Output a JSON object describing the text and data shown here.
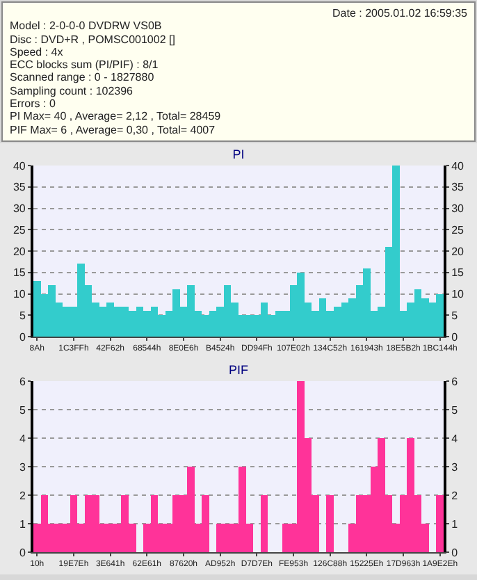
{
  "chart_data": [
    {
      "type": "other",
      "annotations": [
        "Date : 2005.01.02 16:59:35",
        "Model : 2-0-0-0 DVDRW VS0B",
        "Disc : DVD+R , POMSC001002 []",
        "Speed : 4x",
        "ECC blocks sum (PI/PIF) : 8/1",
        "Scanned range : 0 - 1827880",
        "Sampling count : 102396",
        "Errors : 0",
        "PI Max= 40 , Average= 2,12 , Total= 28459",
        "PIF Max= 6 , Average= 0,30 , Total= 4007"
      ]
    },
    {
      "type": "bar",
      "title": "PI",
      "categories": [
        "8Ah",
        null,
        null,
        null,
        null,
        "1C3FFh",
        null,
        null,
        null,
        null,
        "42F62h",
        null,
        null,
        null,
        null,
        "68544h",
        null,
        null,
        null,
        null,
        "8E0E6h",
        null,
        null,
        null,
        null,
        "B4524h",
        null,
        null,
        null,
        null,
        "DD94Fh",
        null,
        null,
        null,
        null,
        "107E02h",
        null,
        null,
        null,
        null,
        "134C52h",
        null,
        null,
        null,
        null,
        "161943h",
        null,
        null,
        null,
        null,
        "18E5B2h",
        null,
        null,
        null,
        null,
        "1BC144h"
      ],
      "series": [
        {
          "color": "#33cccc",
          "values": [
            13,
            10,
            12,
            8,
            7,
            7,
            17,
            12,
            8,
            7,
            8,
            7,
            7,
            6,
            7,
            6,
            7,
            5,
            6,
            11,
            7,
            12,
            6,
            5,
            6,
            7,
            12,
            8,
            5,
            5,
            5,
            8,
            5,
            6,
            6,
            12,
            15,
            8,
            6,
            9,
            6,
            7,
            8,
            9,
            12,
            16,
            6,
            7,
            21,
            40,
            6,
            8,
            11,
            9,
            8,
            10
          ]
        }
      ],
      "ylim": [
        0,
        40
      ],
      "yticks": [
        0,
        5,
        10,
        15,
        20,
        25,
        30,
        35,
        40
      ],
      "y2lim": [
        0,
        40
      ],
      "y2ticks": [
        0,
        5,
        10,
        15,
        20,
        25,
        30,
        35,
        40
      ],
      "grid": "y",
      "legend": false
    },
    {
      "type": "bar",
      "title": "PIF",
      "categories": [
        "10h",
        null,
        null,
        null,
        null,
        "19E7Eh",
        null,
        null,
        null,
        null,
        "3E641h",
        null,
        null,
        null,
        null,
        "62E61h",
        null,
        null,
        null,
        null,
        "87620h",
        null,
        null,
        null,
        null,
        "AD952h",
        null,
        null,
        null,
        null,
        "D7D7Eh",
        null,
        null,
        null,
        null,
        "FE953h",
        null,
        null,
        null,
        null,
        "126C88h",
        null,
        null,
        null,
        null,
        "15225Eh",
        null,
        null,
        null,
        null,
        "17D963h",
        null,
        null,
        null,
        null,
        "1A9E2Eh"
      ],
      "series": [
        {
          "color": "#ff3399",
          "values": [
            1,
            2,
            1,
            1,
            1,
            2,
            1,
            2,
            2,
            1,
            1,
            1,
            2,
            1,
            0,
            1,
            2,
            1,
            1,
            2,
            2,
            3,
            1,
            2,
            0,
            1,
            1,
            1,
            3,
            1,
            0,
            2,
            0,
            0,
            1,
            1,
            6,
            4,
            2,
            0,
            2,
            0,
            0,
            1,
            2,
            2,
            3,
            4,
            2,
            1,
            2,
            4,
            2,
            1,
            0,
            2
          ]
        }
      ],
      "ylim": [
        0,
        6
      ],
      "yticks": [
        0,
        1,
        2,
        3,
        4,
        5,
        6
      ],
      "y2lim": [
        0,
        6
      ],
      "y2ticks": [
        0,
        1,
        2,
        3,
        4,
        5,
        6
      ],
      "grid": "y",
      "legend": false
    }
  ]
}
